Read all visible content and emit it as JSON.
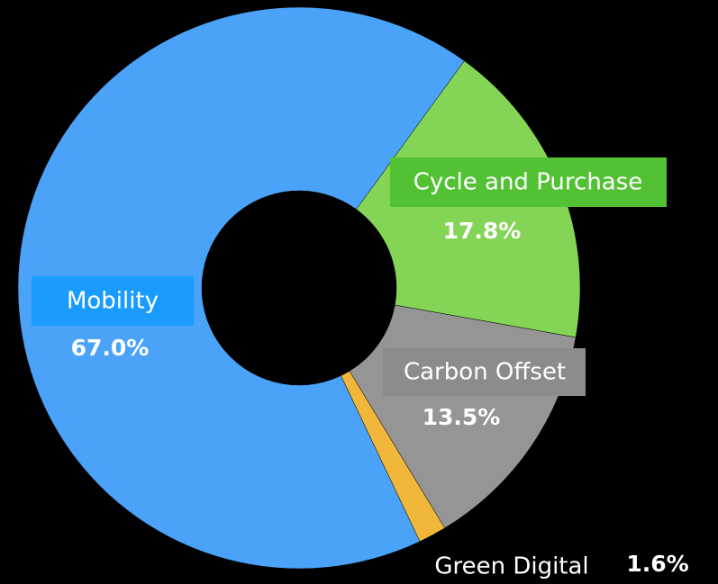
{
  "chart_data": {
    "type": "donut",
    "categories": [
      "Cycle and Purchase",
      "Carbon Offset",
      "Green Digital",
      "Mobility"
    ],
    "values": [
      17.8,
      13.5,
      1.6,
      67.0
    ],
    "value_labels": [
      "17.8%",
      "13.5%",
      "1.6%",
      "67.0%"
    ],
    "colors": [
      "#84d455",
      "#959595",
      "#f0b73a",
      "#4aa3f8"
    ]
  }
}
